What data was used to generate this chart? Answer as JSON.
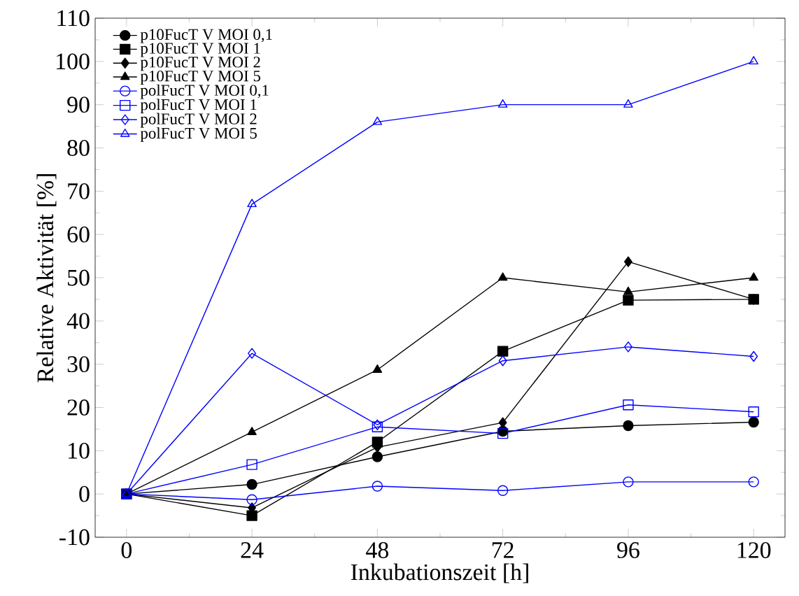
{
  "chart_data": {
    "type": "line",
    "xlabel": "Inkubationszeit [h]",
    "ylabel": "Relative Aktivität [%]",
    "x": [
      0,
      24,
      48,
      72,
      96,
      120
    ],
    "xlim": [
      -6,
      126
    ],
    "xticks": [
      0,
      24,
      48,
      72,
      96,
      120
    ],
    "ylim": [
      -10,
      110
    ],
    "yticks": [
      -10,
      0,
      10,
      20,
      30,
      40,
      50,
      60,
      70,
      80,
      90,
      100,
      110
    ],
    "grid": false,
    "legend": "top left",
    "line_style": "solid",
    "series": [
      {
        "name": "p10FucT V MOI 0,1",
        "color": "#000000",
        "marker": "circle",
        "values": [
          0,
          2.2,
          8.6,
          14.5,
          15.8,
          16.6
        ]
      },
      {
        "name": "p10FucT V MOI 1",
        "color": "#000000",
        "marker": "square",
        "values": [
          0,
          -5,
          12,
          33,
          44.8,
          45
        ]
      },
      {
        "name": "p10FucT V MOI 2",
        "color": "#000000",
        "marker": "diamond",
        "values": [
          0,
          -3.2,
          10.8,
          16.5,
          53.7,
          45
        ]
      },
      {
        "name": "p10FucT V MOI 5",
        "color": "#000000",
        "marker": "triangle",
        "values": [
          0,
          14.3,
          28.7,
          50,
          46.7,
          50
        ]
      },
      {
        "name": "polFucT V MOI 0,1",
        "color": "#0000ff",
        "marker": "circle",
        "values": [
          0,
          -1.3,
          1.8,
          0.8,
          2.8,
          2.8
        ]
      },
      {
        "name": "polFucT V MOI 1",
        "color": "#0000ff",
        "marker": "square",
        "values": [
          0,
          6.8,
          15.5,
          14,
          20.6,
          19
        ]
      },
      {
        "name": "polFucT V MOI 2",
        "color": "#0000ff",
        "marker": "diamond",
        "values": [
          0,
          32.5,
          16,
          30.8,
          34,
          31.8
        ]
      },
      {
        "name": "polFucT V MOI 5",
        "color": "#0000ff",
        "marker": "triangle",
        "values": [
          0,
          67,
          86,
          90,
          90,
          100
        ]
      }
    ]
  }
}
